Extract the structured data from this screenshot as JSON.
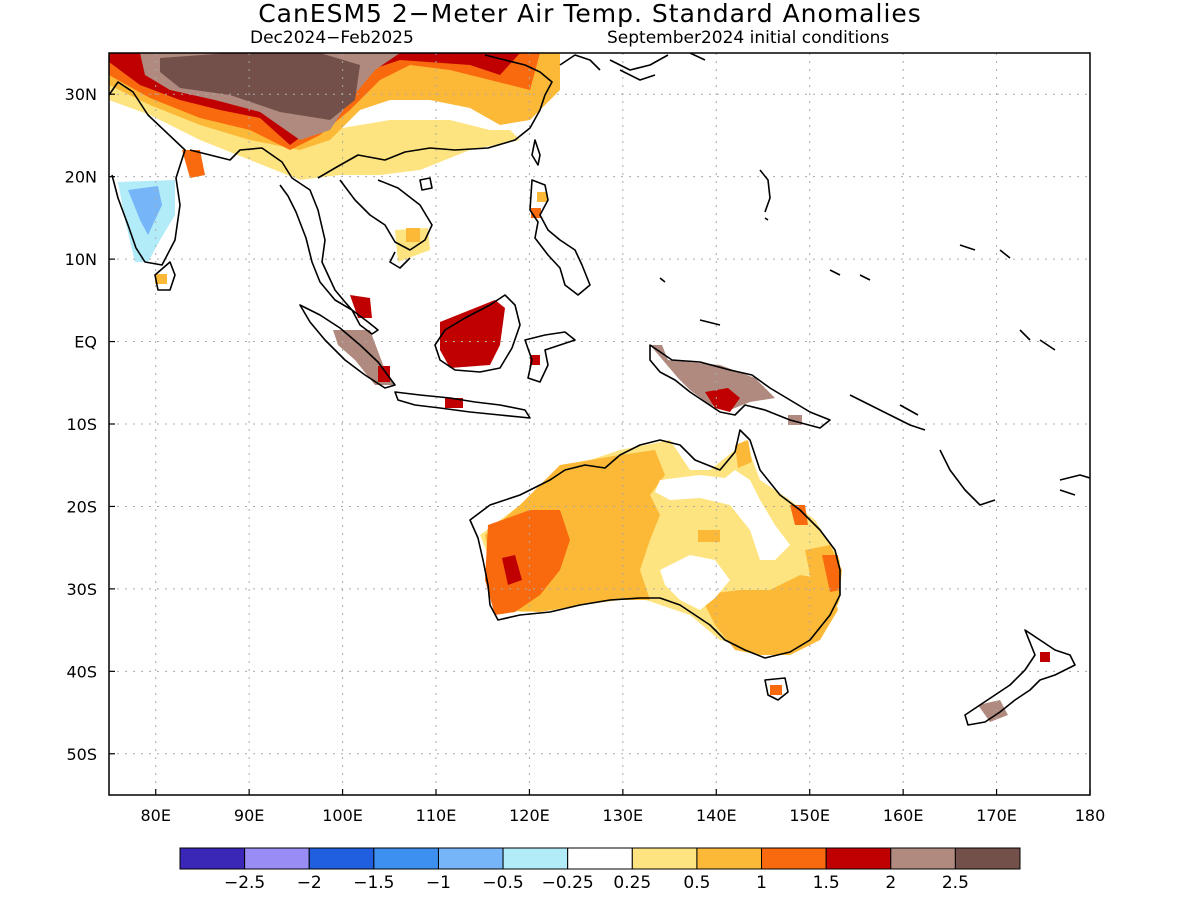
{
  "title": "CanESM5 2−Meter Air Temp. Standard Anomalies",
  "subtitle_left": "Dec2024−Feb2025",
  "subtitle_right": "September2024 initial conditions",
  "map": {
    "lon_range": [
      75,
      180
    ],
    "lat_range": [
      -55,
      35
    ],
    "lat_ticks": [
      "30N",
      "20N",
      "10N",
      "EQ",
      "10S",
      "20S",
      "30S",
      "40S",
      "50S"
    ],
    "lon_ticks": [
      "80E",
      "90E",
      "100E",
      "110E",
      "120E",
      "130E",
      "140E",
      "150E",
      "160E",
      "170E",
      "180"
    ],
    "grid": "dotted"
  },
  "colorbar": {
    "labels": [
      "−2.5",
      "−2",
      "−1.5",
      "−1",
      "−0.5",
      "−0.25",
      "0.25",
      "0.5",
      "1",
      "1.5",
      "2",
      "2.5"
    ],
    "colors": [
      "#3a27b8",
      "#9a8cf5",
      "#1f5fe0",
      "#3d8ff0",
      "#76b5f7",
      "#b2ecf8",
      "#ffffff",
      "#fee480",
      "#fcb938",
      "#f96a0e",
      "#c00000",
      "#b08a7e",
      "#74504a"
    ]
  }
}
